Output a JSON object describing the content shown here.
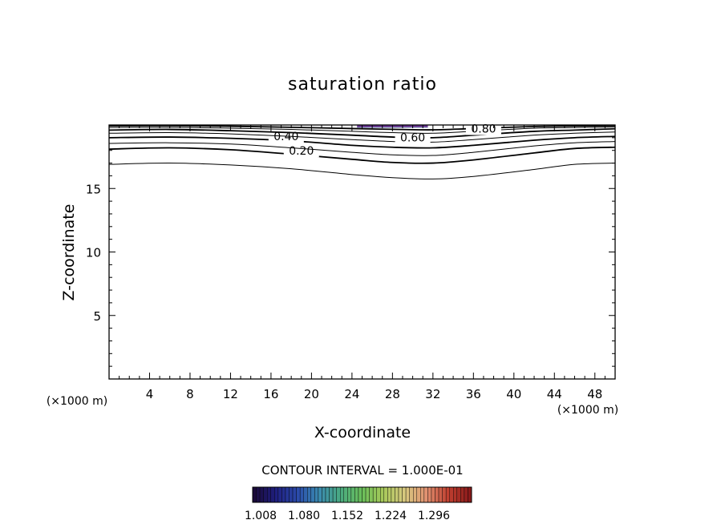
{
  "chart_data": {
    "type": "contour",
    "title": "saturation ratio",
    "xlabel": "X-coordinate",
    "ylabel": "Z-coordinate",
    "x_unit_left": "(×1000 m)",
    "x_unit_right": "(×1000 m)",
    "xlim": [
      0,
      50
    ],
    "ylim": [
      0,
      20
    ],
    "x_ticks": [
      4,
      8,
      12,
      16,
      20,
      24,
      28,
      32,
      36,
      40,
      44,
      48
    ],
    "y_ticks": [
      5,
      10,
      15
    ],
    "contours": [
      {
        "level": "0.10",
        "labeled": false,
        "thick": false,
        "points": [
          [
            0,
            16.9
          ],
          [
            6,
            17.0
          ],
          [
            12,
            16.85
          ],
          [
            18,
            16.55
          ],
          [
            24,
            16.1
          ],
          [
            28,
            15.85
          ],
          [
            32,
            15.75
          ],
          [
            36,
            15.95
          ],
          [
            42,
            16.5
          ],
          [
            46,
            16.9
          ],
          [
            50,
            17.0
          ]
        ]
      },
      {
        "level": "0.20",
        "label": "0.20",
        "labeled": true,
        "label_at": [
          19,
          17.65
        ],
        "thick": true,
        "points": [
          [
            0,
            18.1
          ],
          [
            6,
            18.2
          ],
          [
            12,
            18.05
          ],
          [
            18,
            17.7
          ],
          [
            24,
            17.3
          ],
          [
            28,
            17.05
          ],
          [
            32,
            17.0
          ],
          [
            36,
            17.25
          ],
          [
            42,
            17.8
          ],
          [
            46,
            18.15
          ],
          [
            50,
            18.25
          ]
        ]
      },
      {
        "level": "0.30",
        "labeled": false,
        "thick": false,
        "points": [
          [
            0,
            18.55
          ],
          [
            6,
            18.6
          ],
          [
            12,
            18.5
          ],
          [
            18,
            18.2
          ],
          [
            24,
            17.85
          ],
          [
            28,
            17.65
          ],
          [
            32,
            17.6
          ],
          [
            36,
            17.85
          ],
          [
            42,
            18.35
          ],
          [
            46,
            18.6
          ],
          [
            50,
            18.7
          ]
        ]
      },
      {
        "level": "0.40",
        "label": "0.40",
        "labeled": true,
        "label_at": [
          17.5,
          18.8
        ],
        "thick": true,
        "points": [
          [
            0,
            19.0
          ],
          [
            6,
            19.05
          ],
          [
            12,
            18.95
          ],
          [
            18,
            18.75
          ],
          [
            24,
            18.4
          ],
          [
            28,
            18.25
          ],
          [
            32,
            18.2
          ],
          [
            36,
            18.4
          ],
          [
            42,
            18.8
          ],
          [
            46,
            19.0
          ],
          [
            50,
            19.1
          ]
        ]
      },
      {
        "level": "0.50",
        "labeled": false,
        "thick": false,
        "points": [
          [
            0,
            19.35
          ],
          [
            6,
            19.4
          ],
          [
            12,
            19.3
          ],
          [
            18,
            19.1
          ],
          [
            24,
            18.85
          ],
          [
            28,
            18.7
          ],
          [
            32,
            18.65
          ],
          [
            36,
            18.85
          ],
          [
            42,
            19.2
          ],
          [
            46,
            19.35
          ],
          [
            50,
            19.45
          ]
        ]
      },
      {
        "level": "0.60",
        "label": "0.60",
        "labeled": true,
        "label_at": [
          30,
          18.7
        ],
        "thick": true,
        "points": [
          [
            0,
            19.6
          ],
          [
            6,
            19.65
          ],
          [
            12,
            19.55
          ],
          [
            18,
            19.4
          ],
          [
            24,
            19.2
          ],
          [
            28,
            19.05
          ],
          [
            32,
            19.0
          ],
          [
            36,
            19.2
          ],
          [
            42,
            19.5
          ],
          [
            46,
            19.6
          ],
          [
            50,
            19.7
          ]
        ]
      },
      {
        "level": "0.70",
        "labeled": false,
        "thick": false,
        "points": [
          [
            0,
            19.8
          ],
          [
            6,
            19.82
          ],
          [
            12,
            19.75
          ],
          [
            18,
            19.65
          ],
          [
            24,
            19.5
          ],
          [
            28,
            19.4
          ],
          [
            32,
            19.35
          ],
          [
            36,
            19.5
          ],
          [
            42,
            19.75
          ],
          [
            46,
            19.8
          ],
          [
            50,
            19.85
          ]
        ]
      },
      {
        "level": "0.80",
        "label": "0.80",
        "labeled": true,
        "label_at": [
          37,
          19.4
        ],
        "thick": true,
        "points": [
          [
            0,
            19.93
          ],
          [
            6,
            19.95
          ],
          [
            12,
            19.9
          ],
          [
            18,
            19.82
          ],
          [
            24,
            19.72
          ],
          [
            28,
            19.66
          ],
          [
            32,
            19.62
          ],
          [
            36,
            19.72
          ],
          [
            42,
            19.88
          ],
          [
            46,
            19.92
          ],
          [
            50,
            19.95
          ]
        ]
      }
    ],
    "filled_region": {
      "x_range": [
        24.5,
        31.5
      ],
      "z_range": [
        19.8,
        20.0
      ],
      "colors": [
        "#4a2a9a",
        "#8a3aa0",
        "#2a2a7a"
      ]
    },
    "contour_interval_label": "CONTOUR INTERVAL = 1.000E-01",
    "colorbar": {
      "tick_labels": [
        "1.008",
        "1.080",
        "1.152",
        "1.224",
        "1.296"
      ],
      "colors": [
        "#1a0a3a",
        "#1f1f7f",
        "#2a4aaa",
        "#3a8ab0",
        "#4aaa80",
        "#6abf5a",
        "#a8c85a",
        "#d8c880",
        "#e09070",
        "#c04030",
        "#8a1a1a"
      ]
    }
  }
}
